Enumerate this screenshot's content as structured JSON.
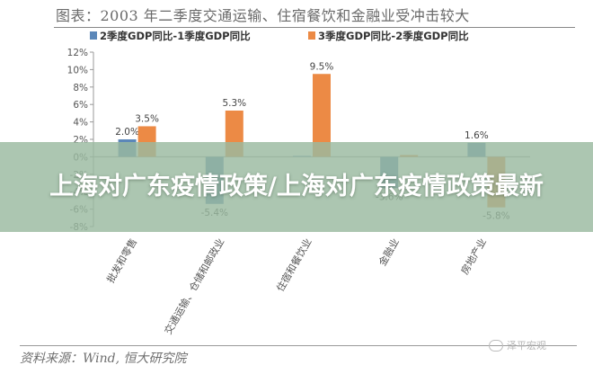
{
  "chart_data": {
    "type": "bar",
    "title": "图表：2003 年二季度交通运输、住宿餐饮和金融业受冲击较大",
    "categories": [
      "批发和零售",
      "交通运输、仓储和邮政业",
      "住宿和餐饮业",
      "金融业",
      "房地产业"
    ],
    "series": [
      {
        "name": "2季度GDP同比-1季度GDP同比",
        "values": [
          2.0,
          -5.4,
          0.1,
          -3.6,
          1.6
        ],
        "color": "#5b87b9"
      },
      {
        "name": "3季度GDP同比-2季度GDP同比",
        "values": [
          3.5,
          5.3,
          9.5,
          0.2,
          -5.8
        ],
        "color": "#ec8a45"
      }
    ],
    "data_labels": {
      "series_0": [
        "2.0%",
        "-5.4%",
        "",
        "-3.6%",
        "1.6%"
      ],
      "series_1": [
        "3.5%",
        "5.3%",
        "9.5%",
        "",
        "-5.8%"
      ]
    },
    "ylim": [
      -8,
      12
    ],
    "yticks": [
      "12%",
      "10%",
      "8%",
      "6%",
      "4%",
      "2%",
      "0%",
      "-2%",
      "-4%",
      "-6%",
      "-8%"
    ],
    "grid": false,
    "legend": "top"
  },
  "source": "资料来源：Wind, 恒大研究院",
  "watermark": "泽平宏观",
  "banner": {
    "text": "上海对广东疫情政策/上海对广东疫情政策最新"
  }
}
